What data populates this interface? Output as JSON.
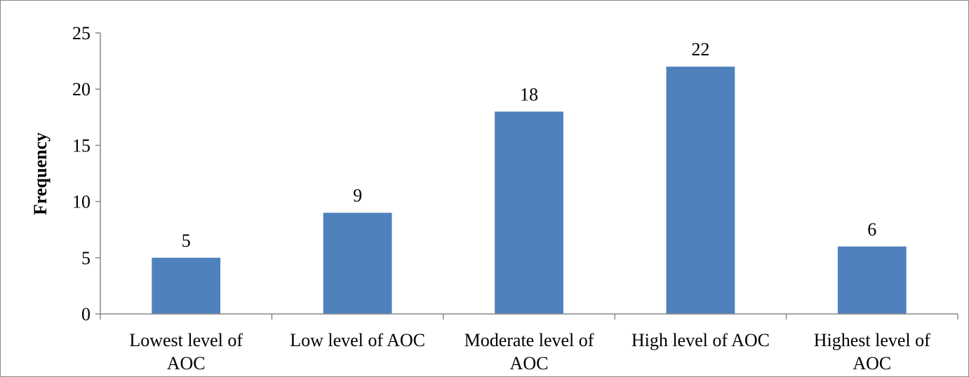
{
  "chart_data": {
    "type": "bar",
    "title": "",
    "xlabel": "",
    "ylabel": "Frequency",
    "ylim": [
      0,
      25
    ],
    "yticks": [
      0,
      5,
      10,
      15,
      20,
      25
    ],
    "categories": [
      [
        "Lowest level of",
        "AOC"
      ],
      [
        "Low level of AOC"
      ],
      [
        "Moderate level of",
        "AOC"
      ],
      [
        "High level of AOC"
      ],
      [
        "Highest level of",
        "AOC"
      ]
    ],
    "values": [
      5,
      9,
      18,
      22,
      6
    ],
    "data_labels": [
      "5",
      "9",
      "18",
      "22",
      "6"
    ],
    "bar_color": "#4f81bd",
    "grid": false,
    "legend": "none"
  }
}
